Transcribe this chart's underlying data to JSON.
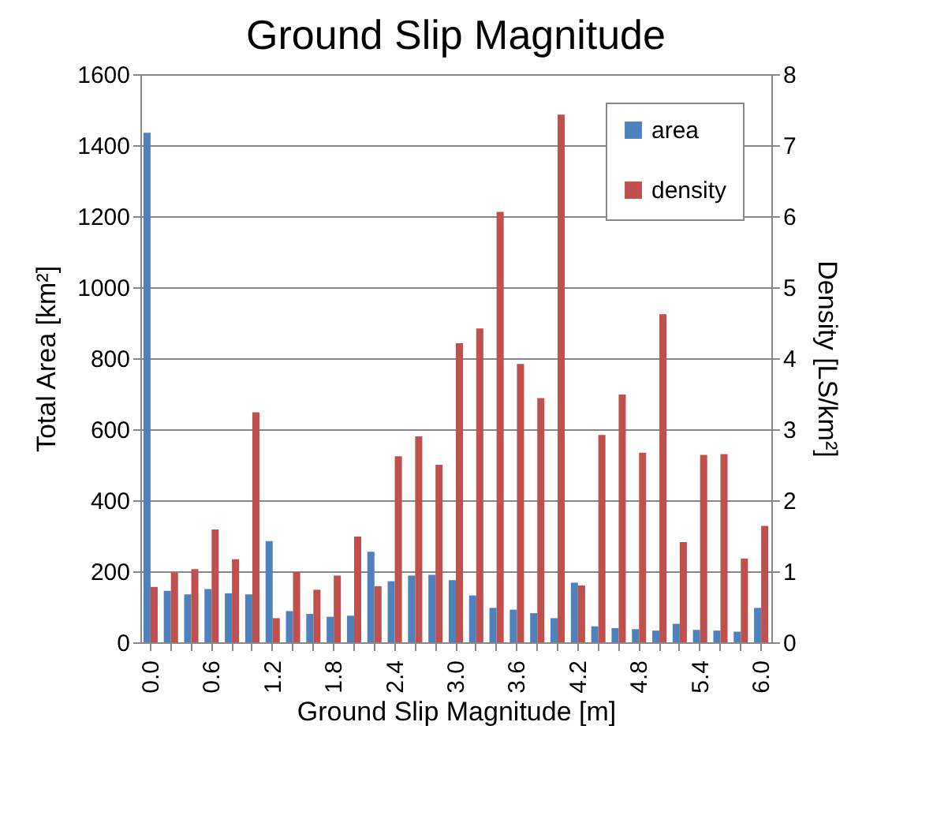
{
  "chart_data": {
    "type": "bar",
    "title": "Ground Slip Magnitude",
    "xlabel": "Ground Slip Magnitude [m]",
    "ylabel": "Total Area [km²]",
    "y2label": "Density [LS/km²]",
    "categories": [
      "0.0",
      null,
      null,
      "0.6",
      null,
      null,
      "1.2",
      null,
      null,
      "1.8",
      null,
      null,
      "2.4",
      null,
      null,
      "3.0",
      null,
      null,
      "3.6",
      null,
      null,
      "4.2",
      null,
      null,
      "4.8",
      null,
      null,
      "5.4",
      null,
      null,
      "6.0"
    ],
    "series": [
      {
        "name": "area",
        "color": "#4f81bd",
        "values": [
          1435,
          145,
          135,
          150,
          138,
          135,
          285,
          88,
          80,
          72,
          75,
          255,
          172,
          188,
          190,
          175,
          132,
          97,
          92,
          82,
          68,
          168,
          45,
          40,
          37,
          33,
          52,
          35,
          33,
          30,
          97
        ]
      },
      {
        "name": "density",
        "color": "#c0504d",
        "axis": "y2",
        "values": [
          0.78,
          0.98,
          1.03,
          1.59,
          1.17,
          3.24,
          0.34,
          0.99,
          0.74,
          0.94,
          1.49,
          0.79,
          2.62,
          2.9,
          2.5,
          4.21,
          4.42,
          6.06,
          3.92,
          3.44,
          7.43,
          0.8,
          2.92,
          3.49,
          2.67,
          4.62,
          1.41,
          2.64,
          2.65,
          1.18,
          1.64
        ]
      }
    ],
    "ylim": [
      0,
      1600
    ],
    "yticks": [
      0,
      200,
      400,
      600,
      800,
      1000,
      1200,
      1400,
      1600
    ],
    "y2lim": [
      0,
      8
    ],
    "y2ticks": [
      0,
      1,
      2,
      3,
      4,
      5,
      6,
      7,
      8
    ],
    "grid": "y",
    "legend": "top right"
  }
}
